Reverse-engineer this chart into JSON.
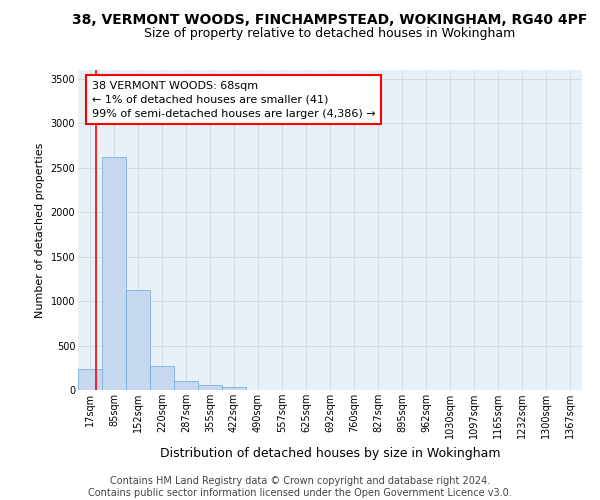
{
  "title": "38, VERMONT WOODS, FINCHAMPSTEAD, WOKINGHAM, RG40 4PF",
  "subtitle": "Size of property relative to detached houses in Wokingham",
  "xlabel": "Distribution of detached houses by size in Wokingham",
  "ylabel": "Number of detached properties",
  "bar_color": "#c5d8f0",
  "bar_edge_color": "#6fa8d6",
  "categories": [
    "17sqm",
    "85sqm",
    "152sqm",
    "220sqm",
    "287sqm",
    "355sqm",
    "422sqm",
    "490sqm",
    "557sqm",
    "625sqm",
    "692sqm",
    "760sqm",
    "827sqm",
    "895sqm",
    "962sqm",
    "1030sqm",
    "1097sqm",
    "1165sqm",
    "1232sqm",
    "1300sqm",
    "1367sqm"
  ],
  "values": [
    240,
    2620,
    1130,
    265,
    100,
    55,
    30,
    0,
    0,
    0,
    0,
    0,
    0,
    0,
    0,
    0,
    0,
    0,
    0,
    0,
    0
  ],
  "ylim": [
    0,
    3600
  ],
  "yticks": [
    0,
    500,
    1000,
    1500,
    2000,
    2500,
    3000,
    3500
  ],
  "annotation_text": "38 VERMONT WOODS: 68sqm\n← 1% of detached houses are smaller (41)\n99% of semi-detached houses are larger (4,386) →",
  "background_color": "#ffffff",
  "ax_facecolor": "#e8f0f8",
  "grid_color": "#d0dce8",
  "footer": "Contains HM Land Registry data © Crown copyright and database right 2024.\nContains public sector information licensed under the Open Government Licence v3.0.",
  "title_fontsize": 10,
  "subtitle_fontsize": 9,
  "ylabel_fontsize": 8,
  "xlabel_fontsize": 9,
  "tick_fontsize": 7,
  "annotation_fontsize": 8,
  "footer_fontsize": 7
}
